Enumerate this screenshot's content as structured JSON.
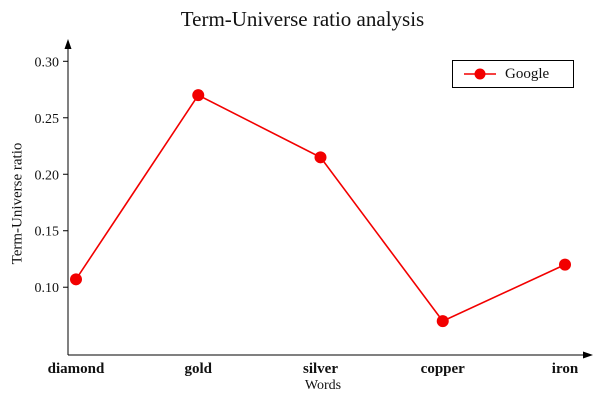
{
  "chart_data": {
    "type": "line",
    "title": "Term-Universe ratio analysis",
    "xlabel": "Words",
    "ylabel": "Term-Universe ratio",
    "categories": [
      "diamond",
      "gold",
      "silver",
      "copper",
      "iron"
    ],
    "series": [
      {
        "name": "Google",
        "values": [
          0.107,
          0.27,
          0.215,
          0.07,
          0.12
        ],
        "color": "#f20000"
      }
    ],
    "ylim": [
      0.04,
      0.31
    ],
    "yticks": [
      0.1,
      0.15,
      0.2,
      0.25,
      0.3
    ],
    "ytick_format_decimals": 2,
    "legend_position": "top-right",
    "grid": false,
    "axis_color": "#000000",
    "background_color": "#ffffff"
  }
}
